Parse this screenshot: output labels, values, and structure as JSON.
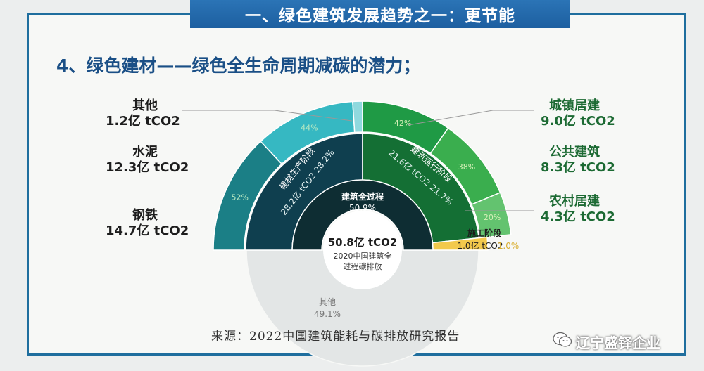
{
  "header": {
    "banner": "一、绿色建筑发展趋势之一：更节能",
    "subtitle": "4、绿色建材——绿色全生命周期减碳的潜力；"
  },
  "source": "来源：2022中国建筑能耗与碳排放研究报告",
  "brand": "辽宁盛铎企业",
  "colors": {
    "materials_outer": "#1b7f86",
    "materials_outer2": "#36b8c2",
    "materials_inner": "#0f3f4f",
    "operation_outer": "#1f9a45",
    "operation_outer2": "#3aae4e",
    "operation_outer3": "#63c36f",
    "operation_inner": "#146f34",
    "construction": "#f2c94c",
    "core": "#0e2d33",
    "other_ring": "#e3e6e6"
  },
  "chart_data": {
    "type": "pie",
    "center": {
      "value": "50.8亿 tCO2",
      "caption_line1": "2020中国建筑全",
      "caption_line2": "过程碳排放"
    },
    "rings": {
      "core": [
        {
          "name": "建筑全过程",
          "percent": 50.9,
          "percent_label": "50.9%"
        },
        {
          "name": "其他",
          "percent": 49.1,
          "percent_label": "49.1%"
        }
      ],
      "stages": [
        {
          "name": "建材生产阶段",
          "value_label": "28.2亿 tCO2",
          "percent": 28.2,
          "percent_label": "28.2%"
        },
        {
          "name": "建筑运行阶段",
          "value_label": "21.6亿 tCO2",
          "percent": 21.7,
          "percent_label": "21.7%"
        },
        {
          "name": "施工阶段",
          "value_label": "1.0亿 tCO2",
          "percent": 1.0,
          "percent_label": "1.0%"
        }
      ],
      "materials": [
        {
          "name": "钢铁",
          "value": 14.7,
          "value_label": "14.7亿 tCO2",
          "percent_label": "52%"
        },
        {
          "name": "水泥",
          "value": 12.3,
          "value_label": "12.3亿 tCO2",
          "percent_label": "44%"
        },
        {
          "name": "其他",
          "value": 1.2,
          "value_label": "1.2亿 tCO2",
          "percent_label": ""
        }
      ],
      "operation": [
        {
          "name": "城镇居建",
          "value": 9.0,
          "value_label": "9.0亿 tCO2",
          "percent_label": "42%"
        },
        {
          "name": "公共建筑",
          "value": 8.3,
          "value_label": "8.3亿 tCO2",
          "percent_label": "38%"
        },
        {
          "name": "农村居建",
          "value": 4.3,
          "value_label": "4.3亿 tCO2",
          "percent_label": "20%"
        }
      ]
    }
  }
}
